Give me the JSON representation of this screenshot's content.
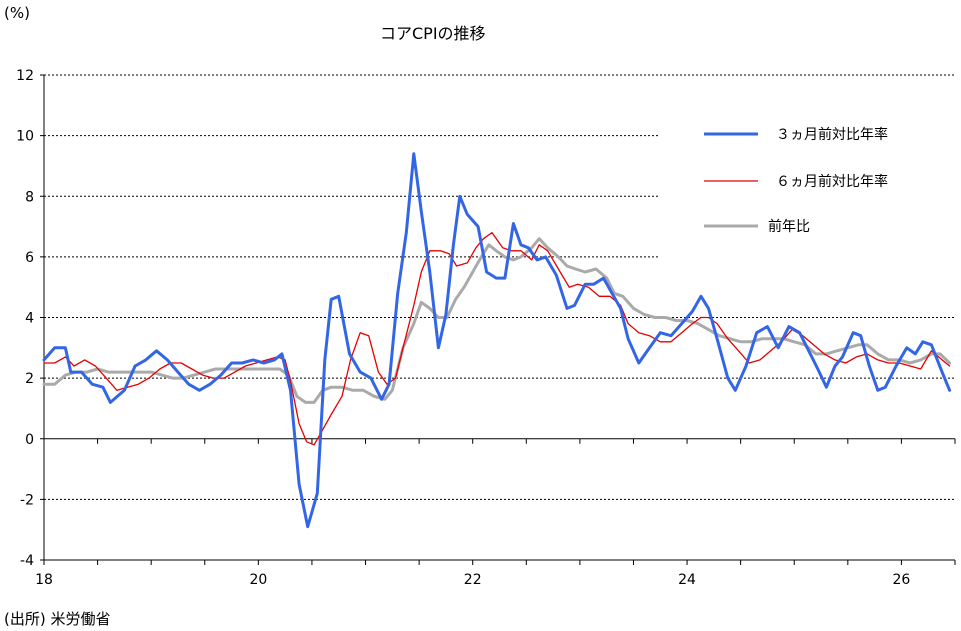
{
  "chart_data": {
    "type": "line",
    "title": "コアCPIの推移",
    "unit_label": "(%)",
    "source": "(出所) 米労働省",
    "xlim": [
      2018.0,
      2026.5
    ],
    "ylim": [
      -4,
      12
    ],
    "y_ticks": [
      -4,
      -2,
      0,
      2,
      4,
      6,
      8,
      10,
      12
    ],
    "y_tick_labels": [
      "-4",
      "-2",
      "0",
      "2",
      "4",
      "6",
      "8",
      "10",
      "12"
    ],
    "x_ticks": [
      2018,
      2020,
      2022,
      2024,
      2026
    ],
    "x_tick_labels": [
      "18",
      "20",
      "22",
      "24",
      "26"
    ],
    "grid": true,
    "legend_position": "top-right",
    "series": [
      {
        "name": "３ヵ月前対比年率",
        "color": "#3366e6",
        "points": [
          [
            2018.0,
            2.6
          ],
          [
            2018.1,
            3.0
          ],
          [
            2018.2,
            3.0
          ],
          [
            2018.25,
            2.2
          ],
          [
            2018.35,
            2.2
          ],
          [
            2018.45,
            1.8
          ],
          [
            2018.55,
            1.7
          ],
          [
            2018.62,
            1.2
          ],
          [
            2018.75,
            1.6
          ],
          [
            2018.85,
            2.4
          ],
          [
            2018.95,
            2.6
          ],
          [
            2019.05,
            2.9
          ],
          [
            2019.15,
            2.6
          ],
          [
            2019.25,
            2.2
          ],
          [
            2019.35,
            1.8
          ],
          [
            2019.45,
            1.6
          ],
          [
            2019.55,
            1.8
          ],
          [
            2019.65,
            2.1
          ],
          [
            2019.75,
            2.5
          ],
          [
            2019.85,
            2.5
          ],
          [
            2019.95,
            2.6
          ],
          [
            2020.05,
            2.5
          ],
          [
            2020.15,
            2.6
          ],
          [
            2020.22,
            2.8
          ],
          [
            2020.3,
            1.6
          ],
          [
            2020.38,
            -1.5
          ],
          [
            2020.46,
            -2.9
          ],
          [
            2020.55,
            -1.8
          ],
          [
            2020.62,
            2.6
          ],
          [
            2020.68,
            4.6
          ],
          [
            2020.75,
            4.7
          ],
          [
            2020.85,
            2.8
          ],
          [
            2020.95,
            2.2
          ],
          [
            2021.05,
            2.0
          ],
          [
            2021.15,
            1.3
          ],
          [
            2021.22,
            1.8
          ],
          [
            2021.3,
            4.8
          ],
          [
            2021.38,
            6.8
          ],
          [
            2021.45,
            9.4
          ],
          [
            2021.52,
            7.5
          ],
          [
            2021.6,
            5.5
          ],
          [
            2021.68,
            3.0
          ],
          [
            2021.75,
            4.1
          ],
          [
            2021.82,
            6.4
          ],
          [
            2021.88,
            8.0
          ],
          [
            2021.95,
            7.4
          ],
          [
            2022.05,
            7.0
          ],
          [
            2022.13,
            5.5
          ],
          [
            2022.22,
            5.3
          ],
          [
            2022.3,
            5.3
          ],
          [
            2022.38,
            7.1
          ],
          [
            2022.45,
            6.4
          ],
          [
            2022.52,
            6.3
          ],
          [
            2022.6,
            5.9
          ],
          [
            2022.68,
            6.0
          ],
          [
            2022.78,
            5.4
          ],
          [
            2022.88,
            4.3
          ],
          [
            2022.95,
            4.4
          ],
          [
            2023.05,
            5.1
          ],
          [
            2023.13,
            5.1
          ],
          [
            2023.22,
            5.3
          ],
          [
            2023.3,
            4.8
          ],
          [
            2023.38,
            4.3
          ],
          [
            2023.45,
            3.3
          ],
          [
            2023.55,
            2.5
          ],
          [
            2023.65,
            3.0
          ],
          [
            2023.75,
            3.5
          ],
          [
            2023.85,
            3.4
          ],
          [
            2023.95,
            3.8
          ],
          [
            2024.05,
            4.2
          ],
          [
            2024.13,
            4.7
          ],
          [
            2024.2,
            4.3
          ],
          [
            2024.28,
            3.3
          ],
          [
            2024.38,
            2.0
          ],
          [
            2024.45,
            1.6
          ],
          [
            2024.55,
            2.4
          ],
          [
            2024.65,
            3.5
          ],
          [
            2024.75,
            3.7
          ],
          [
            2024.85,
            3.0
          ],
          [
            2024.95,
            3.7
          ],
          [
            2025.05,
            3.5
          ],
          [
            2025.15,
            2.8
          ],
          [
            2025.22,
            2.3
          ],
          [
            2025.3,
            1.7
          ],
          [
            2025.38,
            2.4
          ],
          [
            2025.45,
            2.7
          ],
          [
            2025.55,
            3.5
          ],
          [
            2025.62,
            3.4
          ],
          [
            2025.7,
            2.4
          ],
          [
            2025.78,
            1.6
          ],
          [
            2025.85,
            1.7
          ],
          [
            2025.95,
            2.4
          ],
          [
            2026.05,
            3.0
          ],
          [
            2026.13,
            2.8
          ],
          [
            2026.2,
            3.2
          ],
          [
            2026.28,
            3.1
          ],
          [
            2026.38,
            2.2
          ],
          [
            2026.45,
            1.6
          ]
        ]
      },
      {
        "name": "６ヵ月前対比年率",
        "color": "#e60000",
        "points": [
          [
            2018.0,
            2.5
          ],
          [
            2018.1,
            2.5
          ],
          [
            2018.2,
            2.7
          ],
          [
            2018.28,
            2.4
          ],
          [
            2018.38,
            2.6
          ],
          [
            2018.48,
            2.4
          ],
          [
            2018.58,
            2.0
          ],
          [
            2018.68,
            1.6
          ],
          [
            2018.78,
            1.7
          ],
          [
            2018.88,
            1.8
          ],
          [
            2018.98,
            2.0
          ],
          [
            2019.08,
            2.3
          ],
          [
            2019.18,
            2.5
          ],
          [
            2019.28,
            2.5
          ],
          [
            2019.38,
            2.3
          ],
          [
            2019.48,
            2.1
          ],
          [
            2019.58,
            2.0
          ],
          [
            2019.68,
            2.0
          ],
          [
            2019.78,
            2.2
          ],
          [
            2019.88,
            2.4
          ],
          [
            2019.98,
            2.5
          ],
          [
            2020.08,
            2.6
          ],
          [
            2020.18,
            2.7
          ],
          [
            2020.25,
            2.6
          ],
          [
            2020.3,
            1.9
          ],
          [
            2020.38,
            0.5
          ],
          [
            2020.45,
            -0.1
          ],
          [
            2020.52,
            -0.2
          ],
          [
            2020.6,
            0.3
          ],
          [
            2020.68,
            0.8
          ],
          [
            2020.78,
            1.4
          ],
          [
            2020.86,
            2.6
          ],
          [
            2020.95,
            3.5
          ],
          [
            2021.03,
            3.4
          ],
          [
            2021.12,
            2.2
          ],
          [
            2021.2,
            1.8
          ],
          [
            2021.28,
            2.0
          ],
          [
            2021.35,
            3.0
          ],
          [
            2021.45,
            4.4
          ],
          [
            2021.52,
            5.5
          ],
          [
            2021.6,
            6.2
          ],
          [
            2021.7,
            6.2
          ],
          [
            2021.78,
            6.1
          ],
          [
            2021.85,
            5.7
          ],
          [
            2021.95,
            5.8
          ],
          [
            2022.03,
            6.3
          ],
          [
            2022.1,
            6.6
          ],
          [
            2022.18,
            6.8
          ],
          [
            2022.28,
            6.3
          ],
          [
            2022.36,
            6.2
          ],
          [
            2022.45,
            6.2
          ],
          [
            2022.55,
            5.9
          ],
          [
            2022.62,
            6.4
          ],
          [
            2022.7,
            6.2
          ],
          [
            2022.8,
            5.6
          ],
          [
            2022.9,
            5.0
          ],
          [
            2022.98,
            5.1
          ],
          [
            2023.08,
            5.0
          ],
          [
            2023.18,
            4.7
          ],
          [
            2023.28,
            4.7
          ],
          [
            2023.38,
            4.4
          ],
          [
            2023.45,
            3.8
          ],
          [
            2023.55,
            3.5
          ],
          [
            2023.65,
            3.4
          ],
          [
            2023.75,
            3.2
          ],
          [
            2023.85,
            3.2
          ],
          [
            2023.95,
            3.5
          ],
          [
            2024.05,
            3.8
          ],
          [
            2024.13,
            4.0
          ],
          [
            2024.2,
            4.0
          ],
          [
            2024.28,
            3.8
          ],
          [
            2024.38,
            3.3
          ],
          [
            2024.48,
            2.9
          ],
          [
            2024.58,
            2.5
          ],
          [
            2024.68,
            2.6
          ],
          [
            2024.78,
            2.9
          ],
          [
            2024.88,
            3.2
          ],
          [
            2024.98,
            3.6
          ],
          [
            2025.08,
            3.4
          ],
          [
            2025.18,
            3.1
          ],
          [
            2025.28,
            2.8
          ],
          [
            2025.38,
            2.6
          ],
          [
            2025.48,
            2.5
          ],
          [
            2025.58,
            2.7
          ],
          [
            2025.68,
            2.8
          ],
          [
            2025.78,
            2.6
          ],
          [
            2025.88,
            2.5
          ],
          [
            2025.98,
            2.5
          ],
          [
            2026.08,
            2.4
          ],
          [
            2026.18,
            2.3
          ],
          [
            2026.28,
            2.9
          ],
          [
            2026.38,
            2.6
          ],
          [
            2026.45,
            2.4
          ]
        ]
      },
      {
        "name": "前年比",
        "color": "#aaaaaa",
        "points": [
          [
            2018.0,
            1.8
          ],
          [
            2018.1,
            1.8
          ],
          [
            2018.2,
            2.1
          ],
          [
            2018.3,
            2.2
          ],
          [
            2018.4,
            2.2
          ],
          [
            2018.5,
            2.3
          ],
          [
            2018.6,
            2.2
          ],
          [
            2018.7,
            2.2
          ],
          [
            2018.8,
            2.2
          ],
          [
            2018.9,
            2.2
          ],
          [
            2019.0,
            2.2
          ],
          [
            2019.1,
            2.1
          ],
          [
            2019.2,
            2.0
          ],
          [
            2019.3,
            2.0
          ],
          [
            2019.4,
            2.1
          ],
          [
            2019.5,
            2.2
          ],
          [
            2019.6,
            2.3
          ],
          [
            2019.7,
            2.3
          ],
          [
            2019.8,
            2.3
          ],
          [
            2019.9,
            2.3
          ],
          [
            2020.0,
            2.3
          ],
          [
            2020.1,
            2.3
          ],
          [
            2020.2,
            2.3
          ],
          [
            2020.28,
            2.1
          ],
          [
            2020.36,
            1.4
          ],
          [
            2020.44,
            1.2
          ],
          [
            2020.52,
            1.2
          ],
          [
            2020.6,
            1.6
          ],
          [
            2020.68,
            1.7
          ],
          [
            2020.78,
            1.7
          ],
          [
            2020.88,
            1.6
          ],
          [
            2020.98,
            1.6
          ],
          [
            2021.08,
            1.4
          ],
          [
            2021.18,
            1.3
          ],
          [
            2021.25,
            1.6
          ],
          [
            2021.35,
            3.0
          ],
          [
            2021.45,
            3.8
          ],
          [
            2021.52,
            4.5
          ],
          [
            2021.6,
            4.3
          ],
          [
            2021.68,
            4.0
          ],
          [
            2021.76,
            4.0
          ],
          [
            2021.84,
            4.6
          ],
          [
            2021.92,
            5.0
          ],
          [
            2022.0,
            5.5
          ],
          [
            2022.08,
            6.0
          ],
          [
            2022.15,
            6.4
          ],
          [
            2022.22,
            6.2
          ],
          [
            2022.3,
            6.0
          ],
          [
            2022.38,
            5.9
          ],
          [
            2022.45,
            6.0
          ],
          [
            2022.55,
            6.3
          ],
          [
            2022.62,
            6.6
          ],
          [
            2022.7,
            6.3
          ],
          [
            2022.8,
            6.0
          ],
          [
            2022.88,
            5.7
          ],
          [
            2022.96,
            5.6
          ],
          [
            2023.05,
            5.5
          ],
          [
            2023.15,
            5.6
          ],
          [
            2023.25,
            5.3
          ],
          [
            2023.32,
            4.8
          ],
          [
            2023.4,
            4.7
          ],
          [
            2023.5,
            4.3
          ],
          [
            2023.6,
            4.1
          ],
          [
            2023.7,
            4.0
          ],
          [
            2023.8,
            4.0
          ],
          [
            2023.9,
            3.9
          ],
          [
            2024.0,
            3.9
          ],
          [
            2024.1,
            3.8
          ],
          [
            2024.2,
            3.6
          ],
          [
            2024.3,
            3.4
          ],
          [
            2024.4,
            3.3
          ],
          [
            2024.5,
            3.2
          ],
          [
            2024.6,
            3.2
          ],
          [
            2024.7,
            3.3
          ],
          [
            2024.8,
            3.3
          ],
          [
            2024.9,
            3.3
          ],
          [
            2025.0,
            3.2
          ],
          [
            2025.1,
            3.1
          ],
          [
            2025.2,
            2.8
          ],
          [
            2025.3,
            2.8
          ],
          [
            2025.4,
            2.9
          ],
          [
            2025.5,
            3.0
          ],
          [
            2025.6,
            3.1
          ],
          [
            2025.68,
            3.1
          ],
          [
            2025.78,
            2.8
          ],
          [
            2025.88,
            2.6
          ],
          [
            2025.98,
            2.6
          ],
          [
            2026.08,
            2.5
          ],
          [
            2026.18,
            2.6
          ],
          [
            2026.28,
            2.8
          ],
          [
            2026.36,
            2.8
          ],
          [
            2026.45,
            2.5
          ]
        ]
      }
    ]
  }
}
